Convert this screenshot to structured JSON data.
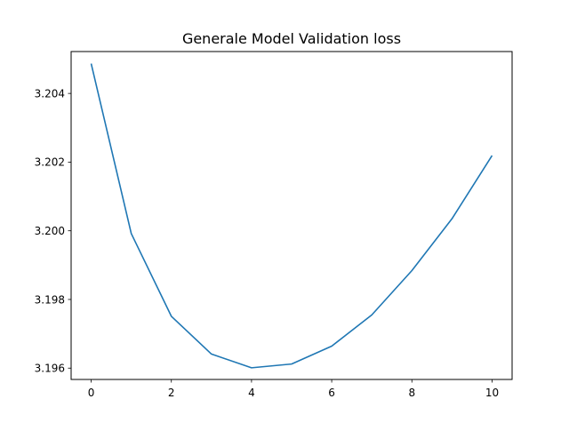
{
  "chart_data": {
    "type": "line",
    "title": "Generale Model Validation loss",
    "xlabel": "",
    "ylabel": "",
    "x": [
      0,
      1,
      2,
      3,
      4,
      5,
      6,
      7,
      8,
      9,
      10
    ],
    "series": [
      {
        "color": "#1f77b4",
        "values": [
          3.20487,
          3.19992,
          3.19751,
          3.19641,
          3.19601,
          3.19612,
          3.19664,
          3.19755,
          3.19884,
          3.20035,
          3.20219
        ]
      }
    ],
    "xlim": [
      -0.5,
      10.5
    ],
    "ylim": [
      3.19567,
      3.20522
    ],
    "xticks": [
      0,
      2,
      4,
      6,
      8,
      10
    ],
    "xtick_labels": [
      "0",
      "2",
      "4",
      "6",
      "8",
      "10"
    ],
    "yticks": [
      3.196,
      3.198,
      3.2,
      3.202,
      3.204
    ],
    "ytick_labels": [
      "3.196",
      "3.198",
      "3.200",
      "3.202",
      "3.204"
    ],
    "grid": false,
    "legend": false
  }
}
